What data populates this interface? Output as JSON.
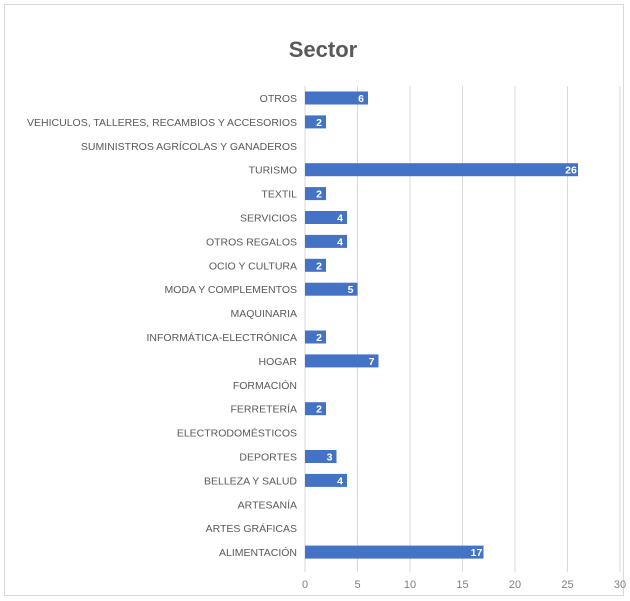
{
  "chart_data": {
    "type": "bar",
    "orientation": "horizontal",
    "title": "Sector",
    "xlabel": "",
    "ylabel": "",
    "xlim": [
      0,
      30
    ],
    "x_ticks": [
      0,
      5,
      10,
      15,
      20,
      25,
      30
    ],
    "grid": "vertical",
    "legend": "none",
    "bar_color": "#4472c4",
    "gridline_color": "#d9d9d9",
    "categories": [
      "OTROS",
      "VEHICULOS, TALLERES, RECAMBIOS Y ACCESORIOS",
      "SUMINISTROS AGRÍCOLAS Y GANADEROS",
      "TURISMO",
      "TEXTIL",
      "SERVICIOS",
      "OTROS REGALOS",
      "OCIO Y CULTURA",
      "MODA Y COMPLEMENTOS",
      "MAQUINARIA",
      "INFORMÁTICA-ELECTRÓNICA",
      "HOGAR",
      "FORMACIÓN",
      "FERRETERÍA",
      "ELECTRODOMÉSTICOS",
      "DEPORTES",
      "BELLEZA Y SALUD",
      "ARTESANÍA",
      "ARTES GRÁFICAS",
      "ALIMENTACIÓN"
    ],
    "values": [
      6,
      2,
      0,
      26,
      2,
      4,
      4,
      2,
      5,
      0,
      2,
      7,
      0,
      2,
      0,
      3,
      4,
      0,
      0,
      17
    ]
  }
}
